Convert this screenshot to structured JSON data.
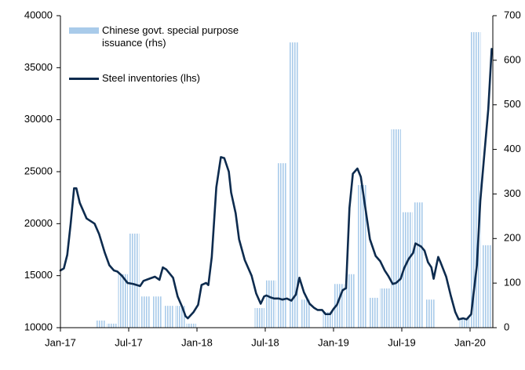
{
  "chart_data": {
    "type": "bar-line",
    "xlim": [
      0,
      38
    ],
    "xticks": [
      {
        "value": 0,
        "label": "Jan-17"
      },
      {
        "value": 6,
        "label": "Jul-17"
      },
      {
        "value": 12,
        "label": "Jan-18"
      },
      {
        "value": 18,
        "label": "Jul-18"
      },
      {
        "value": 24,
        "label": "Jan-19"
      },
      {
        "value": 30,
        "label": "Jul-19"
      },
      {
        "value": 36,
        "label": "Jan-20"
      }
    ],
    "ylim": [
      10000,
      40000
    ],
    "yticks": [
      10000,
      15000,
      20000,
      25000,
      30000,
      35000,
      40000
    ],
    "y2lim": [
      0,
      700
    ],
    "y2ticks": [
      0,
      100,
      200,
      300,
      400,
      500,
      600,
      700
    ],
    "series": [
      {
        "name": "Chinese govt. special purpose issuance (rhs)",
        "type": "bar",
        "axis": "y2",
        "color": "#a9cbea",
        "x": [
          0,
          1,
          2,
          3,
          4,
          5,
          6,
          7,
          8,
          9,
          10,
          11,
          12,
          13,
          14,
          15,
          16,
          17,
          18,
          19,
          20,
          21,
          22,
          23,
          24,
          25,
          26,
          27,
          28,
          29,
          30,
          31,
          32,
          33,
          34,
          35,
          36,
          37
        ],
        "values": [
          0,
          0,
          0,
          16,
          9,
          120,
          211,
          70,
          70,
          49,
          49,
          9,
          0,
          0,
          0,
          0,
          0,
          44,
          106,
          369,
          640,
          63,
          0,
          35,
          98,
          120,
          320,
          67,
          88,
          445,
          259,
          281,
          63,
          0,
          0,
          21,
          663,
          185
        ]
      },
      {
        "name": "Steel inventories (lhs)",
        "type": "line",
        "axis": "y",
        "color": "#0d2b4e",
        "x": [
          0,
          0.3,
          0.6,
          0.9,
          1.2,
          1.4,
          1.7,
          2.3,
          3.0,
          3.4,
          3.9,
          4.3,
          4.7,
          5.0,
          5.4,
          5.9,
          6.4,
          7.0,
          7.3,
          7.8,
          8.3,
          8.7,
          9.0,
          9.3,
          9.9,
          10.3,
          10.7,
          11.0,
          11.2,
          11.7,
          12.1,
          12.4,
          12.8,
          13.0,
          13.3,
          13.7,
          14.1,
          14.4,
          14.8,
          15.0,
          15.4,
          15.7,
          16.2,
          16.8,
          17.2,
          17.6,
          17.9,
          18.1,
          18.5,
          18.8,
          19.2,
          19.5,
          19.9,
          20.3,
          20.7,
          21.0,
          21.4,
          21.9,
          22.3,
          22.6,
          23.0,
          23.3,
          23.7,
          24.0,
          24.3,
          24.8,
          25.1,
          25.4,
          25.7,
          26.1,
          26.4,
          26.8,
          27.2,
          27.7,
          28.1,
          28.5,
          28.8,
          29.2,
          29.5,
          29.9,
          30.2,
          30.6,
          31.0,
          31.2,
          31.7,
          32.0,
          32.3,
          32.6,
          32.8,
          33.2,
          33.4,
          33.9,
          34.3,
          34.7,
          35.0,
          35.4,
          35.7,
          36.1,
          36.3,
          36.6,
          36.9,
          37.2,
          37.6,
          37.9
        ],
        "values": [
          15500,
          15700,
          17000,
          20000,
          23400,
          23400,
          22000,
          20500,
          20000,
          19000,
          17200,
          16000,
          15500,
          15400,
          15000,
          14300,
          14200,
          14000,
          14500,
          14700,
          14900,
          14600,
          15800,
          15600,
          14800,
          13000,
          12000,
          11100,
          10900,
          11500,
          12200,
          14100,
          14300,
          14100,
          16800,
          23500,
          26400,
          26300,
          25000,
          23000,
          21000,
          18500,
          16500,
          15000,
          13300,
          12300,
          13000,
          13100,
          12900,
          12800,
          12800,
          12700,
          12800,
          12600,
          13200,
          14800,
          13400,
          12300,
          11900,
          11700,
          11700,
          11300,
          11300,
          11800,
          12200,
          13600,
          13800,
          21500,
          24800,
          25300,
          24500,
          21500,
          18500,
          16900,
          16400,
          15500,
          15000,
          14200,
          14300,
          14700,
          15700,
          16600,
          17200,
          18100,
          17800,
          17400,
          16300,
          15800,
          14700,
          16800,
          16300,
          14900,
          13100,
          11500,
          10800,
          10900,
          10800,
          11300,
          13200,
          16000,
          22200,
          26000,
          31000,
          36800
        ]
      }
    ]
  }
}
